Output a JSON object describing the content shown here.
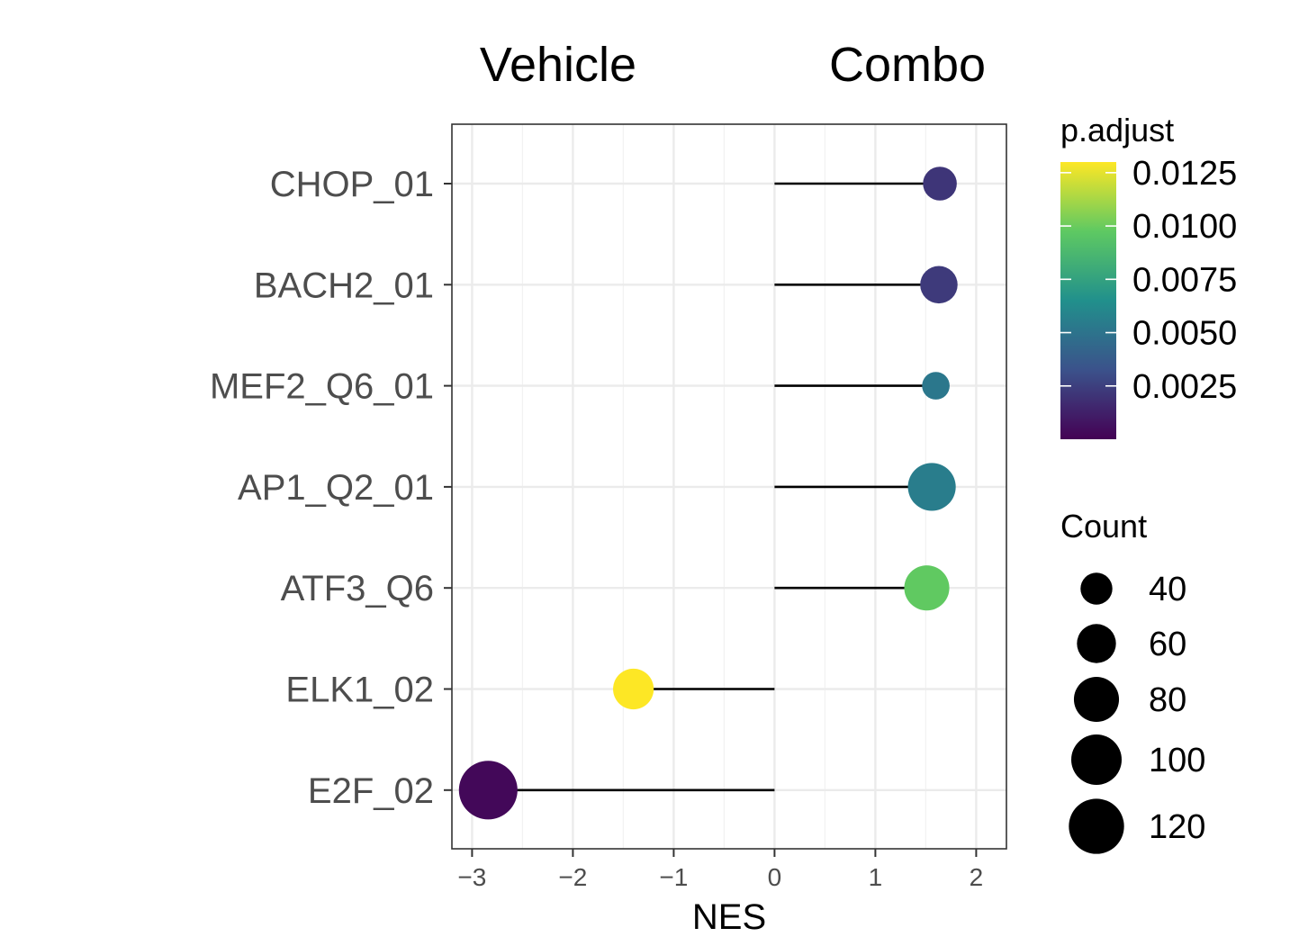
{
  "chart_data": {
    "type": "lollipop",
    "header_labels": {
      "left": "Vehicle",
      "right": "Combo"
    },
    "xlabel": "NES",
    "ylabel": "",
    "xlim": [
      -3.2,
      2.3
    ],
    "x_ticks": [
      -3,
      -2,
      -1,
      0,
      1,
      2
    ],
    "x_tick_labels": [
      "−3",
      "−2",
      "−1",
      "0",
      "1",
      "2"
    ],
    "grid": true,
    "categories": [
      "CHOP_01",
      "BACH2_01",
      "MEF2_Q6_01",
      "AP1_Q2_01",
      "ATF3_Q6",
      "ELK1_02",
      "E2F_02"
    ],
    "points": [
      {
        "term": "CHOP_01",
        "nes": 1.64,
        "p_adjust": 0.0021,
        "count": 45
      },
      {
        "term": "BACH2_01",
        "nes": 1.63,
        "p_adjust": 0.0023,
        "count": 55
      },
      {
        "term": "MEF2_Q6_01",
        "nes": 1.6,
        "p_adjust": 0.0052,
        "count": 30
      },
      {
        "term": "AP1_Q2_01",
        "nes": 1.56,
        "p_adjust": 0.0055,
        "count": 90
      },
      {
        "term": "ATF3_Q6",
        "nes": 1.51,
        "p_adjust": 0.0098,
        "count": 80
      },
      {
        "term": "ELK1_02",
        "nes": -1.4,
        "p_adjust": 0.013,
        "count": 65
      },
      {
        "term": "E2F_02",
        "nes": -2.84,
        "p_adjust": 0.0003,
        "count": 135
      }
    ],
    "color_legend": {
      "title": "p.adjust",
      "range": [
        0.0,
        0.013
      ],
      "ticks": [
        0.0025,
        0.005,
        0.0075,
        0.01,
        0.0125
      ],
      "tick_labels": [
        "0.0025",
        "0.0050",
        "0.0075",
        "0.0100",
        "0.0125"
      ],
      "palette": [
        "#440154",
        "#3b528b",
        "#21908c",
        "#5ec962",
        "#fde725"
      ]
    },
    "size_legend": {
      "title": "Count",
      "values": [
        40,
        60,
        80,
        100,
        120
      ],
      "labels": [
        "40",
        "60",
        "80",
        "100",
        "120"
      ]
    }
  }
}
